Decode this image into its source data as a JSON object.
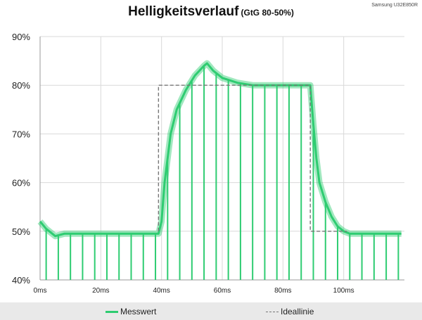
{
  "title": "Helligkeitsverlauf",
  "subtitle": "(GtG 80-50%)",
  "brand": "Samsung U32E850R",
  "colors": {
    "measured": "#2ecc71",
    "ideal": "#777777",
    "grid": "#d9d9d9",
    "axis": "#999999"
  },
  "chart_data": {
    "type": "line",
    "title": "Helligkeitsverlauf",
    "subtitle": "(GtG 80-50%)",
    "xlim": [
      0,
      120
    ],
    "ylim": [
      40,
      90
    ],
    "xticks": [
      "0ms",
      "20ms",
      "40ms",
      "60ms",
      "80ms",
      "100ms"
    ],
    "xtick_values": [
      0,
      20,
      40,
      60,
      80,
      100
    ],
    "yticks": [
      "40%",
      "50%",
      "60%",
      "70%",
      "80%",
      "90%"
    ],
    "ytick_values": [
      40,
      50,
      60,
      70,
      80,
      90
    ],
    "grid": true,
    "legend": "bottom",
    "series": [
      {
        "name": "Messwert",
        "x": [
          0,
          2,
          5,
          8,
          12,
          20,
          30,
          39,
          40,
          41,
          43,
          45,
          48,
          51,
          54,
          55,
          57,
          60,
          65,
          70,
          75,
          80,
          85,
          89,
          90,
          91,
          92,
          94,
          96,
          98,
          100,
          102,
          105,
          110,
          115,
          119
        ],
        "y": [
          52,
          50.5,
          49,
          49.5,
          49.5,
          49.5,
          49.5,
          49.5,
          52,
          60,
          70,
          75,
          79,
          82,
          84,
          84.5,
          83,
          81.5,
          80.5,
          80,
          80,
          80,
          80,
          80,
          72,
          65,
          60,
          56,
          53,
          51,
          50,
          49.5,
          49.5,
          49.5,
          49.5,
          49.5
        ],
        "dips_to": 40,
        "dip_x": [
          2,
          6,
          10,
          14,
          18,
          22,
          26,
          30,
          34,
          38,
          42,
          46,
          50,
          54,
          58,
          62,
          66,
          70,
          74,
          78,
          82,
          86,
          90,
          94,
          98,
          102,
          106,
          110,
          114,
          118
        ]
      },
      {
        "name": "Ideallinie",
        "style": "dashed",
        "x": [
          0,
          39,
          39,
          89,
          89,
          101
        ],
        "y": [
          null,
          null,
          80,
          80,
          50,
          50
        ]
      }
    ]
  },
  "legend": {
    "measured_label": "Messwert",
    "ideal_label": "Ideallinie"
  }
}
